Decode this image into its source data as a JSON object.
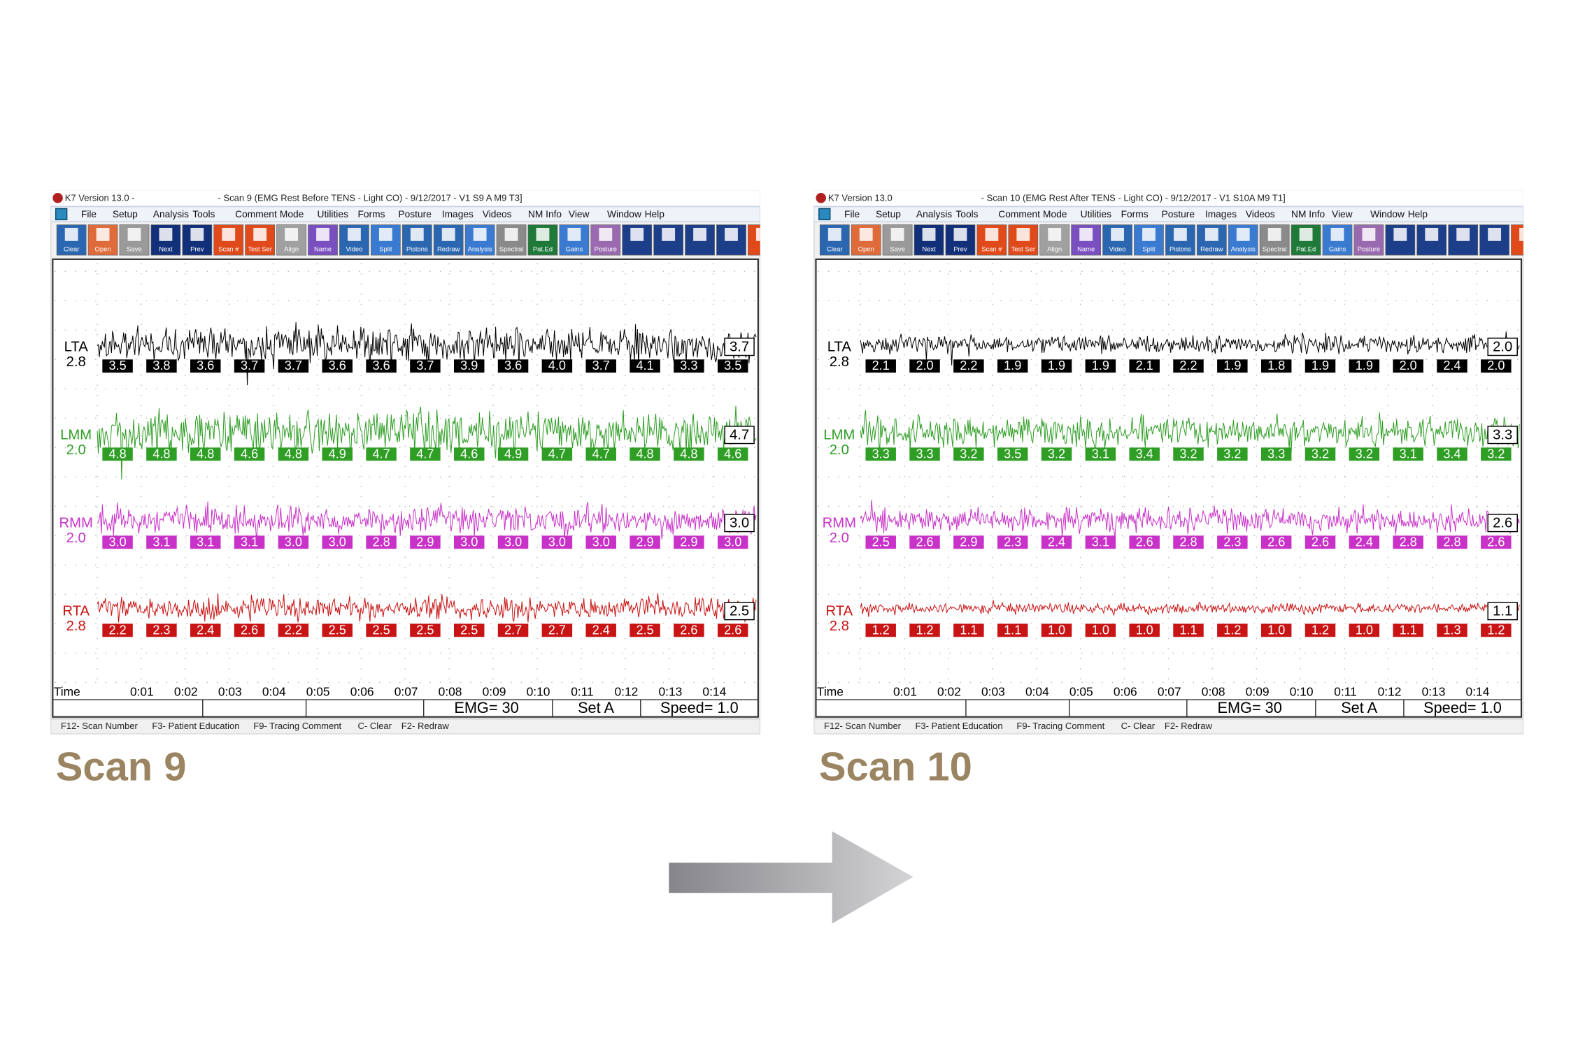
{
  "windows": [
    {
      "title_left": "K7 Version 13.0 -",
      "title_right": "- Scan 9 (EMG Rest Before TENS - Light CO) - 9/12/2017 - V1  S9 A   M9   T3]",
      "menu": [
        "File",
        "Setup",
        "Analysis",
        "Tools",
        "Comment",
        "Mode",
        "Utilities",
        "Forms",
        "Posture",
        "Images",
        "Videos",
        "NM Info",
        "View",
        "Window",
        "Help"
      ],
      "toolbar": [
        "Clear",
        "Open",
        "Save",
        "Next",
        "Prev",
        "Scan #",
        "Test Ser",
        "Align",
        "Name",
        "Video",
        "Split",
        "Pistons",
        "Redraw",
        "Analysis",
        "Spectral",
        "Pat.Ed",
        "Gains",
        "Posture"
      ],
      "channels": [
        {
          "name": "LTA",
          "baseline": "2.8",
          "current": "3.7",
          "values": [
            "3.5",
            "3.8",
            "3.6",
            "3.7",
            "3.7",
            "3.6",
            "3.6",
            "3.7",
            "3.9",
            "3.6",
            "4.0",
            "3.7",
            "4.1",
            "3.3",
            "3.5"
          ]
        },
        {
          "name": "LMM",
          "baseline": "2.0",
          "current": "4.7",
          "values": [
            "4.8",
            "4.8",
            "4.8",
            "4.6",
            "4.8",
            "4.9",
            "4.7",
            "4.7",
            "4.6",
            "4.9",
            "4.7",
            "4.7",
            "4.8",
            "4.8",
            "4.6"
          ]
        },
        {
          "name": "RMM",
          "baseline": "2.0",
          "current": "3.0",
          "values": [
            "3.0",
            "3.1",
            "3.1",
            "3.1",
            "3.0",
            "3.0",
            "2.8",
            "2.9",
            "3.0",
            "3.0",
            "3.0",
            "3.0",
            "2.9",
            "2.9",
            "3.0"
          ]
        },
        {
          "name": "RTA",
          "baseline": "2.8",
          "current": "2.5",
          "values": [
            "2.2",
            "2.3",
            "2.4",
            "2.6",
            "2.2",
            "2.5",
            "2.5",
            "2.5",
            "2.5",
            "2.7",
            "2.7",
            "2.4",
            "2.5",
            "2.6",
            "2.6"
          ]
        }
      ],
      "time_label": "Time",
      "time_ticks": [
        "0:01",
        "0:02",
        "0:03",
        "0:04",
        "0:05",
        "0:06",
        "0:07",
        "0:08",
        "0:09",
        "0:10",
        "0:11",
        "0:12",
        "0:13",
        "0:14"
      ],
      "status": [
        "EMG= 30",
        "Set A",
        "Speed= 1.0"
      ],
      "function_keys": [
        "F12- Scan Number",
        "F3- Patient Education",
        "F9- Tracing Comment",
        "C- Clear",
        "F2- Redraw"
      ],
      "caption": "Scan 9"
    },
    {
      "title_left": "K7 Version 13.0",
      "title_right": "- Scan 10 (EMG Rest After TENS - Light CO) - 9/12/2017 - V1  S10A   M9   T1]",
      "menu": [
        "File",
        "Setup",
        "Analysis",
        "Tools",
        "Comment",
        "Mode",
        "Utilities",
        "Forms",
        "Posture",
        "Images",
        "Videos",
        "NM Info",
        "View",
        "Window",
        "Help"
      ],
      "toolbar": [
        "Clear",
        "Open",
        "Save",
        "Next",
        "Prev",
        "Scan #",
        "Test Ser",
        "Align",
        "Name",
        "Video",
        "Split",
        "Pistons",
        "Redraw",
        "Analysis",
        "Spectral",
        "Pat.Ed",
        "Gains",
        "Posture"
      ],
      "channels": [
        {
          "name": "LTA",
          "baseline": "2.8",
          "current": "2.0",
          "values": [
            "2.1",
            "2.0",
            "2.2",
            "1.9",
            "1.9",
            "1.9",
            "2.1",
            "2.2",
            "1.9",
            "1.8",
            "1.9",
            "1.9",
            "2.0",
            "2.4",
            "2.0"
          ]
        },
        {
          "name": "LMM",
          "baseline": "2.0",
          "current": "3.3",
          "values": [
            "3.3",
            "3.3",
            "3.2",
            "3.5",
            "3.2",
            "3.1",
            "3.4",
            "3.2",
            "3.2",
            "3.3",
            "3.2",
            "3.2",
            "3.1",
            "3.4",
            "3.2"
          ]
        },
        {
          "name": "RMM",
          "baseline": "2.0",
          "current": "2.6",
          "values": [
            "2.5",
            "2.6",
            "2.9",
            "2.3",
            "2.4",
            "3.1",
            "2.6",
            "2.8",
            "2.3",
            "2.6",
            "2.6",
            "2.4",
            "2.8",
            "2.8",
            "2.6"
          ]
        },
        {
          "name": "RTA",
          "baseline": "2.8",
          "current": "1.1",
          "values": [
            "1.2",
            "1.2",
            "1.1",
            "1.1",
            "1.0",
            "1.0",
            "1.0",
            "1.1",
            "1.2",
            "1.0",
            "1.2",
            "1.0",
            "1.1",
            "1.3",
            "1.2"
          ]
        }
      ],
      "time_label": "Time",
      "time_ticks": [
        "0:01",
        "0:02",
        "0:03",
        "0:04",
        "0:05",
        "0:06",
        "0:07",
        "0:08",
        "0:09",
        "0:10",
        "0:11",
        "0:12",
        "0:13",
        "0:14"
      ],
      "status": [
        "EMG= 30",
        "Set A",
        "Speed= 1.0"
      ],
      "function_keys": [
        "F12- Scan Number",
        "F3- Patient Education",
        "F9- Tracing Comment",
        "C- Clear",
        "F2- Redraw"
      ],
      "caption": "Scan 10"
    }
  ]
}
